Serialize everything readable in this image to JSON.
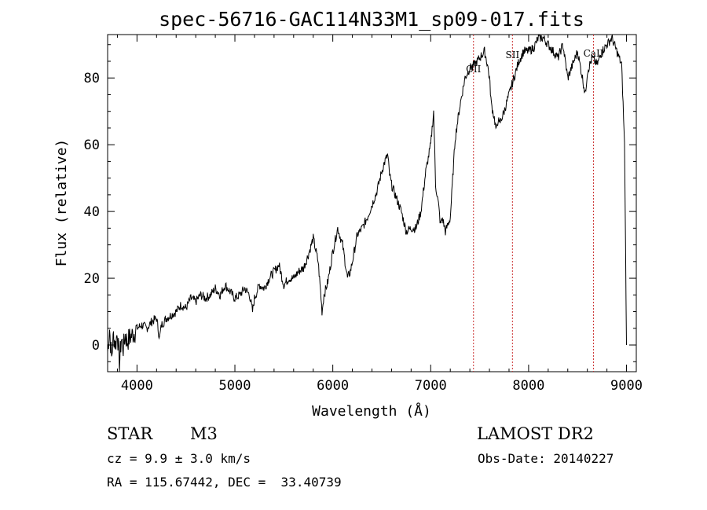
{
  "chart_data": {
    "type": "line",
    "title": "spec-56716-GAC114N33M1_sp09-017.fits",
    "xlabel": "Wavelength (Å)",
    "ylabel": "Flux (relative)",
    "xlim": [
      3700,
      9100
    ],
    "ylim": [
      -8,
      93
    ],
    "xticks": [
      4000,
      5000,
      6000,
      7000,
      8000,
      9000
    ],
    "yticks": [
      0,
      20,
      40,
      60,
      80
    ],
    "grid": false,
    "legend": "none",
    "line_color": "#000000",
    "marker_color": "#cc3333",
    "series": [
      {
        "x": [
          3700,
          3720,
          3740,
          3760,
          3780,
          3800,
          3820,
          3840,
          3860,
          3880,
          3900,
          3920,
          3950,
          3980,
          4000,
          4050,
          4100,
          4150,
          4200,
          4230,
          4250,
          4300,
          4350,
          4400,
          4450,
          4500,
          4550,
          4600,
          4650,
          4700,
          4750,
          4800,
          4850,
          4900,
          4950,
          5000,
          5050,
          5100,
          5150,
          5180,
          5200,
          5250,
          5300,
          5350,
          5400,
          5450,
          5500,
          5550,
          5600,
          5650,
          5700,
          5750,
          5800,
          5850,
          5870,
          5890,
          5910,
          5950,
          6000,
          6050,
          6100,
          6150,
          6180,
          6200,
          6250,
          6300,
          6350,
          6400,
          6450,
          6500,
          6520,
          6560,
          6580,
          6600,
          6650,
          6700,
          6750,
          6800,
          6850,
          6900,
          6950,
          7000,
          7030,
          7050,
          7080,
          7100,
          7120,
          7150,
          7200,
          7250,
          7300,
          7350,
          7400,
          7450,
          7500,
          7550,
          7580,
          7600,
          7620,
          7650,
          7670,
          7690,
          7700,
          7750,
          7800,
          7850,
          7900,
          7950,
          8000,
          8050,
          8100,
          8150,
          8200,
          8250,
          8300,
          8350,
          8400,
          8450,
          8500,
          8550,
          8580,
          8600,
          8650,
          8700,
          8750,
          8800,
          8850,
          8900,
          8950,
          8980,
          9000
        ],
        "y": [
          -2,
          5,
          -4,
          3,
          0,
          4,
          -6,
          2,
          -1,
          3,
          1,
          2,
          3,
          4,
          5,
          6,
          5,
          7,
          8,
          2,
          6,
          8,
          9,
          10,
          12,
          11,
          14,
          13,
          15,
          14,
          15,
          17,
          15,
          18,
          16,
          14,
          15,
          17,
          15,
          10,
          14,
          18,
          17,
          20,
          22,
          24,
          18,
          20,
          20,
          22,
          23,
          27,
          32,
          25,
          18,
          10,
          15,
          19,
          28,
          35,
          30,
          20,
          22,
          25,
          33,
          35,
          38,
          42,
          46,
          52,
          54,
          57,
          51,
          48,
          44,
          40,
          34,
          35,
          35,
          40,
          52,
          60,
          70,
          48,
          42,
          36,
          38,
          34,
          38,
          62,
          72,
          80,
          83,
          84,
          86,
          88,
          84,
          80,
          72,
          68,
          64,
          68,
          66,
          70,
          75,
          80,
          85,
          88,
          88,
          89,
          92,
          92,
          90,
          88,
          86,
          90,
          80,
          84,
          88,
          80,
          75,
          82,
          86,
          84,
          88,
          90,
          92,
          88,
          84,
          60,
          0
        ]
      }
    ],
    "annotations": [
      {
        "text": "OII",
        "x": 7437
      },
      {
        "text": "SII",
        "x": 7835
      },
      {
        "text": "CaII",
        "x": 8663
      }
    ]
  },
  "info": {
    "object_class": "STAR",
    "subclass": "M3",
    "survey": "LAMOST DR2",
    "redshift": "cz = 9.9 ± 3.0 km/s",
    "obs_date": "Obs-Date: 20140227",
    "coords": "RA = 115.67442, DEC =  33.40739"
  }
}
